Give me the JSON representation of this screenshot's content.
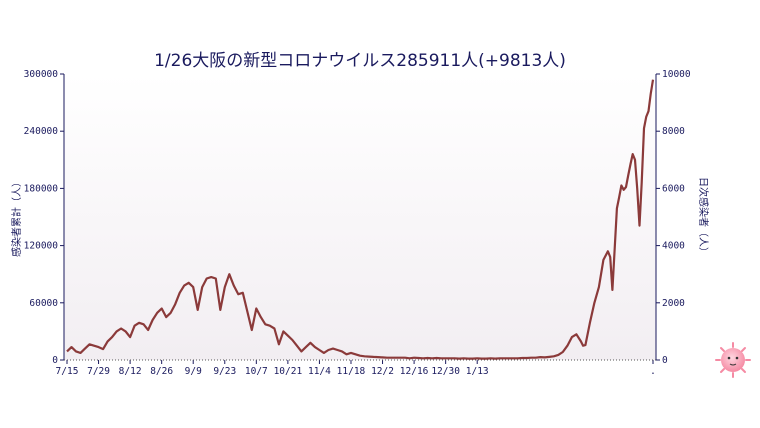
{
  "chart_data": {
    "type": "line",
    "title": "1/26大阪の新型コロナウイルス285911人(+9813人)",
    "ylabel_left": "感染者累計（人）",
    "ylabel_right": "日次感染者（人）",
    "ylim_left": [
      0,
      300000
    ],
    "ylim_right": [
      0,
      10000
    ],
    "yticks_left": [
      "0",
      "60000",
      "120000",
      "180000",
      "240000",
      "300000"
    ],
    "yticks_right": [
      "0",
      "2000",
      "4000",
      "6000",
      "8000",
      "10000"
    ],
    "xtick_labels": [
      "7/15",
      "7/29",
      "8/12",
      "8/26",
      "9/9",
      "9/23",
      "10/7",
      "10/21",
      "11/4",
      "11/18",
      "12/2",
      "12/16",
      "12/30",
      "1/13",
      "."
    ],
    "series": [
      {
        "axis": "right",
        "color": "#8b3a3a",
        "points": [
          [
            0,
            300
          ],
          [
            2,
            450
          ],
          [
            4,
            300
          ],
          [
            6,
            250
          ],
          [
            8,
            400
          ],
          [
            10,
            550
          ],
          [
            12,
            500
          ],
          [
            14,
            450
          ],
          [
            16,
            380
          ],
          [
            18,
            650
          ],
          [
            20,
            800
          ],
          [
            22,
            1000
          ],
          [
            24,
            1100
          ],
          [
            26,
            1000
          ],
          [
            28,
            800
          ],
          [
            30,
            1200
          ],
          [
            32,
            1300
          ],
          [
            34,
            1250
          ],
          [
            36,
            1050
          ],
          [
            38,
            1400
          ],
          [
            40,
            1650
          ],
          [
            42,
            1800
          ],
          [
            44,
            1500
          ],
          [
            46,
            1650
          ],
          [
            48,
            1950
          ],
          [
            50,
            2350
          ],
          [
            52,
            2600
          ],
          [
            54,
            2700
          ],
          [
            56,
            2550
          ],
          [
            58,
            1750
          ],
          [
            60,
            2550
          ],
          [
            62,
            2850
          ],
          [
            64,
            2900
          ],
          [
            66,
            2850
          ],
          [
            68,
            1750
          ],
          [
            70,
            2550
          ],
          [
            72,
            3000
          ],
          [
            74,
            2600
          ],
          [
            76,
            2300
          ],
          [
            78,
            2350
          ],
          [
            80,
            1700
          ],
          [
            82,
            1050
          ],
          [
            84,
            1800
          ],
          [
            86,
            1500
          ],
          [
            88,
            1250
          ],
          [
            90,
            1200
          ],
          [
            92,
            1100
          ],
          [
            94,
            550
          ],
          [
            96,
            1000
          ],
          [
            98,
            850
          ],
          [
            100,
            700
          ],
          [
            102,
            500
          ],
          [
            104,
            300
          ],
          [
            106,
            450
          ],
          [
            108,
            600
          ],
          [
            110,
            450
          ],
          [
            112,
            350
          ],
          [
            114,
            250
          ],
          [
            116,
            350
          ],
          [
            118,
            400
          ],
          [
            120,
            350
          ],
          [
            122,
            300
          ],
          [
            124,
            200
          ],
          [
            126,
            250
          ],
          [
            128,
            200
          ],
          [
            130,
            150
          ],
          [
            132,
            130
          ],
          [
            134,
            120
          ],
          [
            136,
            110
          ],
          [
            138,
            100
          ],
          [
            140,
            90
          ],
          [
            142,
            80
          ],
          [
            144,
            80
          ],
          [
            146,
            80
          ],
          [
            148,
            80
          ],
          [
            150,
            80
          ],
          [
            152,
            60
          ],
          [
            154,
            80
          ],
          [
            156,
            70
          ],
          [
            158,
            60
          ],
          [
            160,
            70
          ],
          [
            162,
            60
          ],
          [
            164,
            70
          ],
          [
            166,
            60
          ],
          [
            168,
            60
          ],
          [
            170,
            60
          ],
          [
            172,
            60
          ],
          [
            174,
            50
          ],
          [
            176,
            60
          ],
          [
            178,
            50
          ],
          [
            180,
            50
          ],
          [
            182,
            60
          ],
          [
            184,
            50
          ],
          [
            186,
            50
          ],
          [
            188,
            60
          ],
          [
            190,
            50
          ],
          [
            192,
            60
          ],
          [
            194,
            60
          ],
          [
            196,
            60
          ],
          [
            198,
            60
          ],
          [
            200,
            60
          ],
          [
            202,
            70
          ],
          [
            204,
            70
          ],
          [
            206,
            80
          ],
          [
            208,
            80
          ],
          [
            210,
            100
          ],
          [
            212,
            90
          ],
          [
            214,
            110
          ],
          [
            216,
            130
          ],
          [
            218,
            180
          ],
          [
            220,
            280
          ],
          [
            222,
            500
          ],
          [
            224,
            800
          ],
          [
            226,
            900
          ],
          [
            228,
            650
          ],
          [
            229,
            500
          ],
          [
            230,
            520
          ],
          [
            232,
            1300
          ],
          [
            234,
            2000
          ],
          [
            236,
            2550
          ],
          [
            238,
            3500
          ],
          [
            240,
            3800
          ],
          [
            241,
            3600
          ],
          [
            242,
            2450
          ],
          [
            243,
            3900
          ],
          [
            244,
            5300
          ],
          [
            245,
            5700
          ],
          [
            246,
            6100
          ],
          [
            247,
            5950
          ],
          [
            248,
            6050
          ],
          [
            249,
            6450
          ],
          [
            250,
            6850
          ],
          [
            251,
            7200
          ],
          [
            252,
            7000
          ],
          [
            253,
            6000
          ],
          [
            254,
            4700
          ],
          [
            255,
            6200
          ],
          [
            256,
            8100
          ],
          [
            257,
            8500
          ],
          [
            258,
            8700
          ],
          [
            259,
            9300
          ],
          [
            260,
            9800
          ]
        ]
      }
    ]
  }
}
